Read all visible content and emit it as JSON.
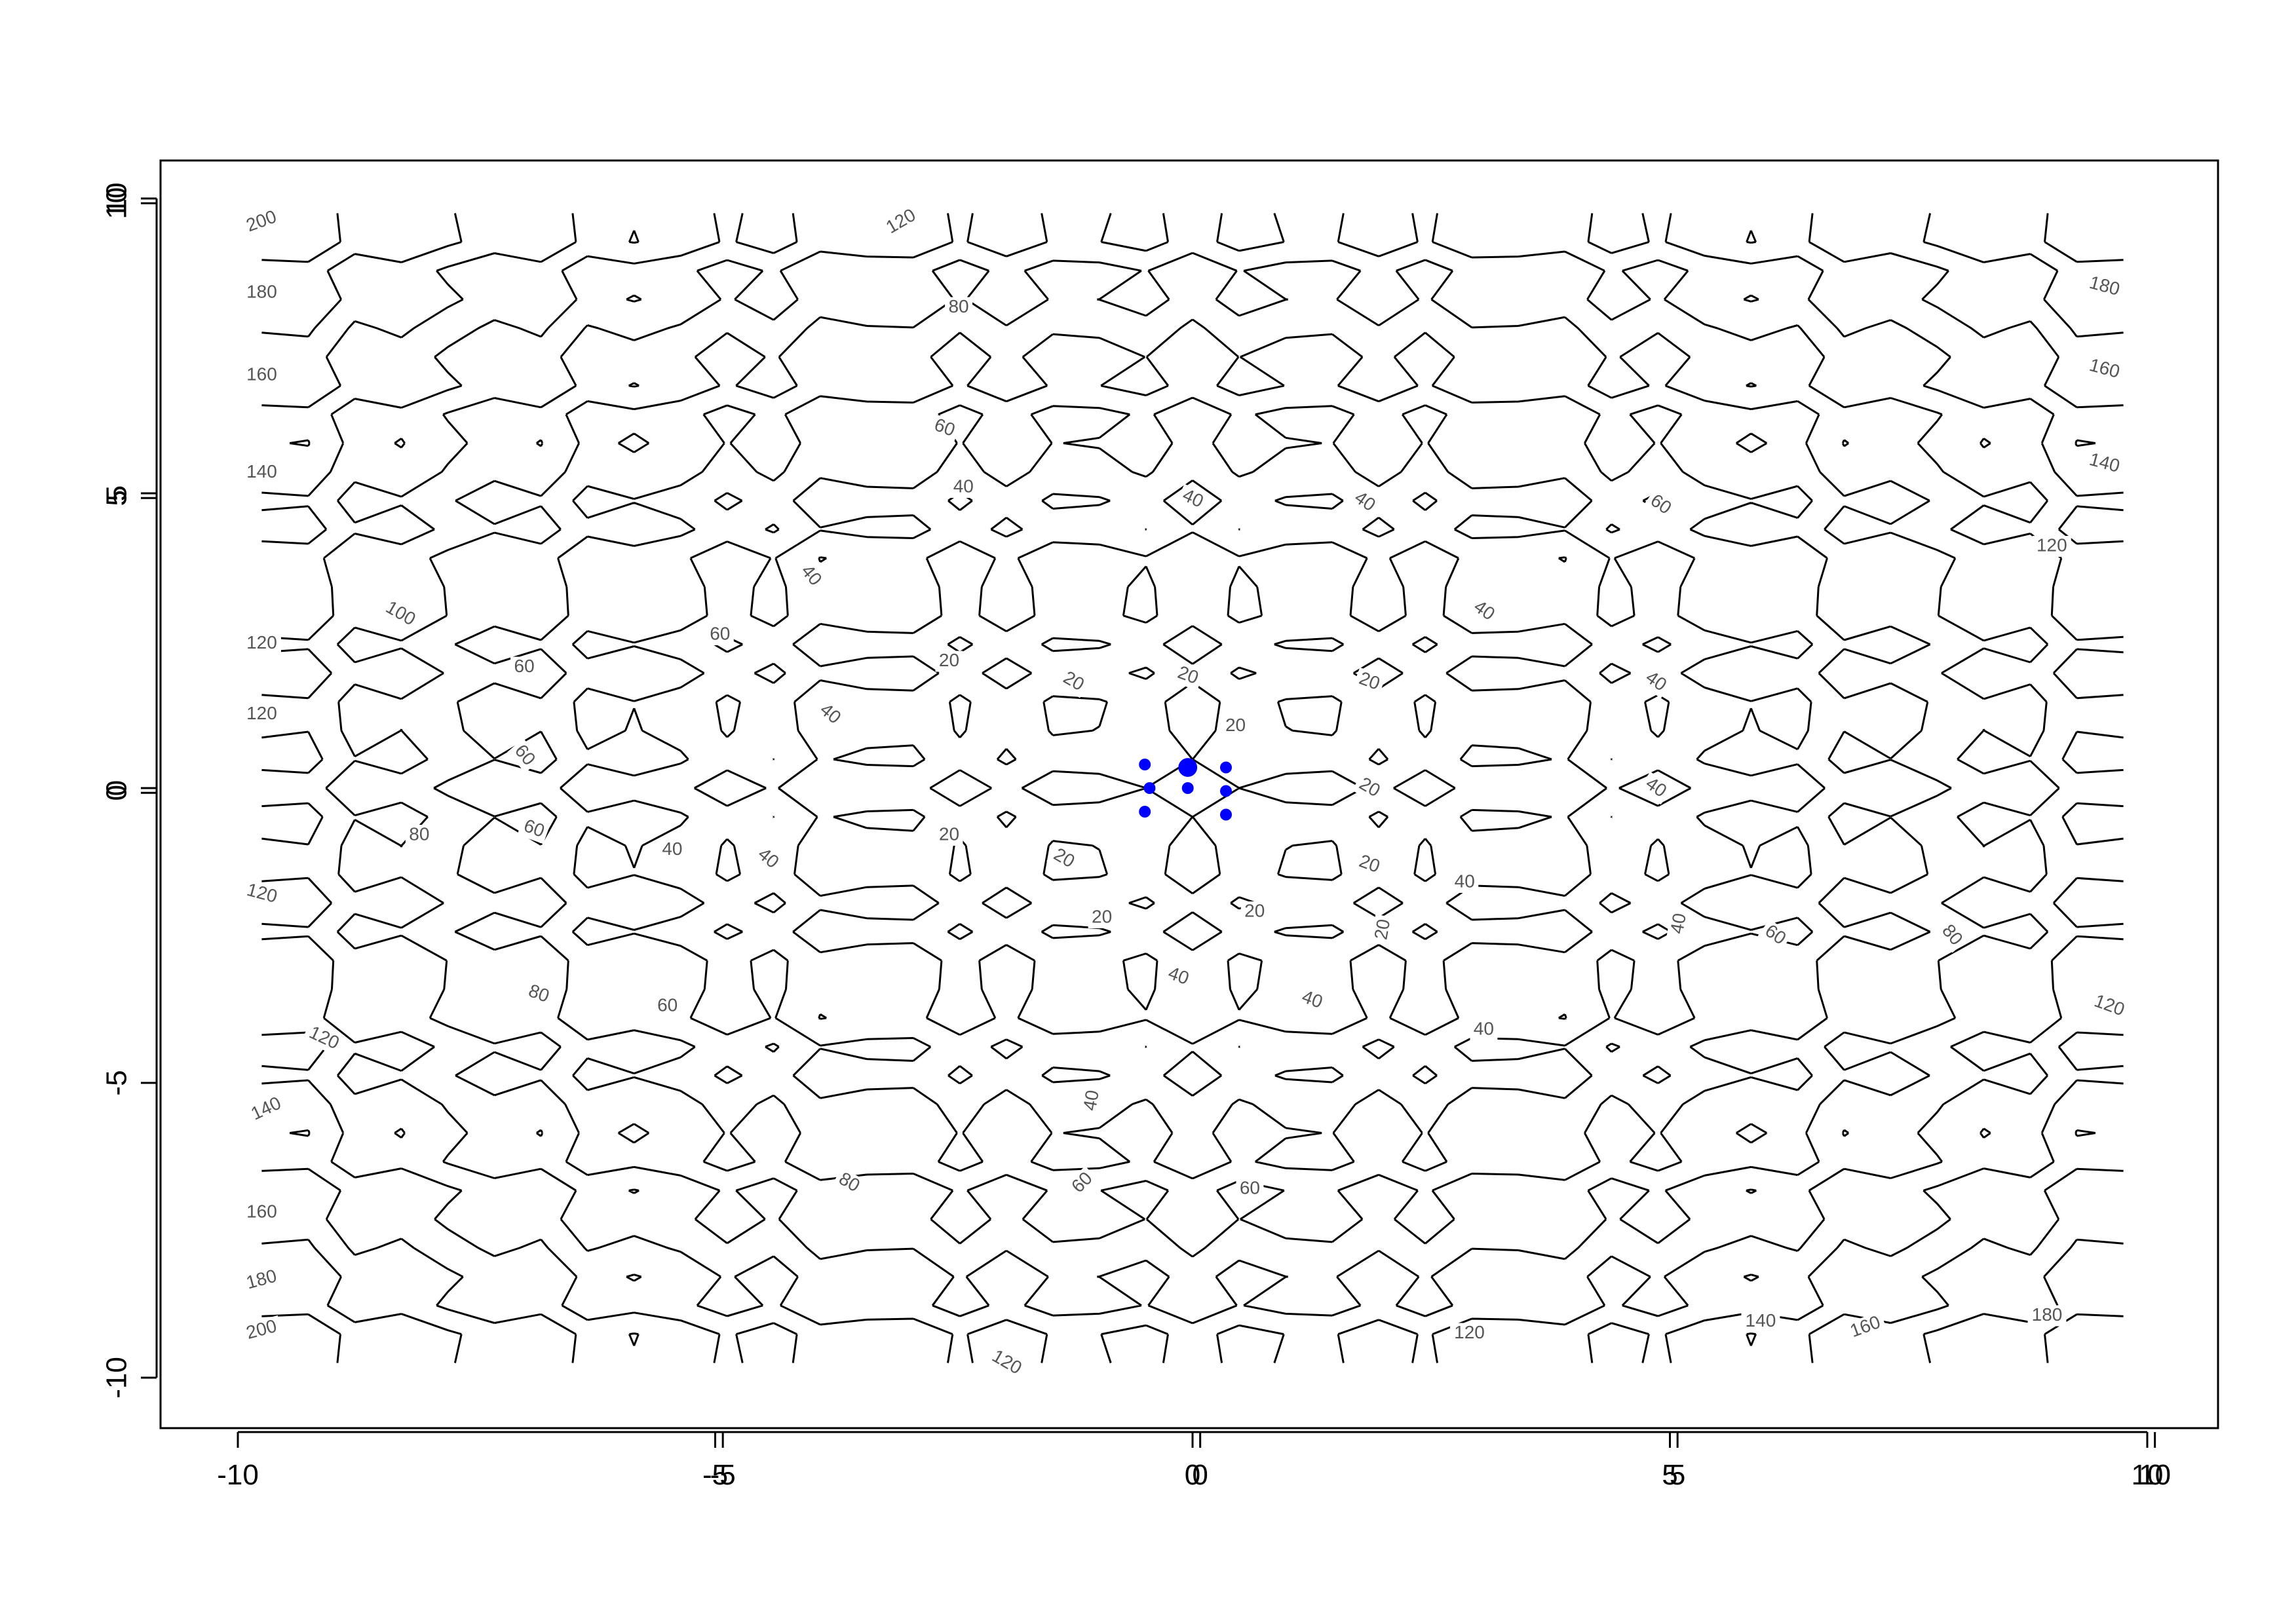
{
  "chart_data": {
    "type": "contour",
    "title": "",
    "xlabel": "",
    "ylabel": "",
    "xlim": [
      -10.8,
      10.8
    ],
    "ylim": [
      -10.8,
      10.6
    ],
    "x_ticks": [
      -10,
      -5,
      0,
      5,
      10
    ],
    "y_ticks": [
      -10,
      -5,
      0,
      5,
      10
    ],
    "x_tick_labels": [
      "-10",
      "-5",
      "0",
      "5",
      "10"
    ],
    "y_tick_labels": [
      "-10",
      "-5",
      "0",
      "5",
      "10"
    ],
    "x_axis_overlay": {
      "ticks": [
        -5,
        0,
        5,
        10
      ],
      "labels": [
        "-5",
        "0",
        "5",
        "10"
      ],
      "offset": 0.08
    },
    "y_axis_overlay": {
      "ticks": [
        0,
        5,
        10
      ],
      "labels": [
        "0",
        "5",
        "10"
      ],
      "offset": 0.08
    },
    "contour_levels": [
      20,
      40,
      60,
      80,
      100,
      120,
      140,
      160,
      180,
      200
    ],
    "grid": false,
    "legend": "none",
    "point_color": "#0000ff",
    "points": [
      {
        "x": -0.5,
        "y": 0.4,
        "size": 1
      },
      {
        "x": -0.45,
        "y": 0.0,
        "size": 1
      },
      {
        "x": -0.5,
        "y": -0.4,
        "size": 1
      },
      {
        "x": -0.05,
        "y": 0.35,
        "size": 1.6
      },
      {
        "x": -0.05,
        "y": 0.0,
        "size": 1
      },
      {
        "x": 0.35,
        "y": 0.35,
        "size": 1
      },
      {
        "x": 0.35,
        "y": -0.05,
        "size": 1
      },
      {
        "x": 0.35,
        "y": -0.45,
        "size": 1
      }
    ],
    "labels": [
      {
        "text": "200",
        "x": -9.75,
        "y": 9.6,
        "angle": -20
      },
      {
        "text": "180",
        "x": -9.75,
        "y": 8.4,
        "angle": 0
      },
      {
        "text": "160",
        "x": -9.75,
        "y": 7.0,
        "angle": 0
      },
      {
        "text": "140",
        "x": -9.75,
        "y": 5.35,
        "angle": 0
      },
      {
        "text": "120",
        "x": -9.75,
        "y": 2.45,
        "angle": 0
      },
      {
        "text": "120",
        "x": -9.75,
        "y": 1.25,
        "angle": 0
      },
      {
        "text": "120",
        "x": -9.75,
        "y": -1.8,
        "angle": 15
      },
      {
        "text": "100",
        "x": -8.3,
        "y": 2.95,
        "angle": 30
      },
      {
        "text": "120",
        "x": -3.05,
        "y": 9.6,
        "angle": -30
      },
      {
        "text": "80",
        "x": -2.45,
        "y": 8.15,
        "angle": 0
      },
      {
        "text": "60",
        "x": -2.6,
        "y": 6.1,
        "angle": 20
      },
      {
        "text": "40",
        "x": -2.4,
        "y": 5.1,
        "angle": 0
      },
      {
        "text": "60",
        "x": -4.95,
        "y": 2.6,
        "angle": 0
      },
      {
        "text": "40",
        "x": -4.0,
        "y": 3.6,
        "angle": 50
      },
      {
        "text": "60",
        "x": -7.0,
        "y": 2.05,
        "angle": 0
      },
      {
        "text": "60",
        "x": -7.0,
        "y": 0.55,
        "angle": 50
      },
      {
        "text": "20",
        "x": -2.55,
        "y": 2.15,
        "angle": 0
      },
      {
        "text": "20",
        "x": -1.25,
        "y": 1.8,
        "angle": 30
      },
      {
        "text": "40",
        "x": -3.8,
        "y": 1.25,
        "angle": 40
      },
      {
        "text": "20",
        "x": -0.05,
        "y": 1.9,
        "angle": 20
      },
      {
        "text": "20",
        "x": 1.85,
        "y": 1.8,
        "angle": 20
      },
      {
        "text": "20",
        "x": 0.45,
        "y": 1.05,
        "angle": 0
      },
      {
        "text": "20",
        "x": 1.85,
        "y": 0.0,
        "angle": 30
      },
      {
        "text": "40",
        "x": 0.0,
        "y": 4.9,
        "angle": 25
      },
      {
        "text": "40",
        "x": 1.8,
        "y": 4.85,
        "angle": 35
      },
      {
        "text": "40",
        "x": 3.05,
        "y": 3.0,
        "angle": 35
      },
      {
        "text": "60",
        "x": 4.9,
        "y": 4.8,
        "angle": 35
      },
      {
        "text": "40",
        "x": 4.85,
        "y": 1.8,
        "angle": 35
      },
      {
        "text": "40",
        "x": 4.85,
        "y": 0.0,
        "angle": 35
      },
      {
        "text": "80",
        "x": -8.1,
        "y": -0.8,
        "angle": 0
      },
      {
        "text": "60",
        "x": -6.9,
        "y": -0.7,
        "angle": 20
      },
      {
        "text": "40",
        "x": -5.45,
        "y": -1.05,
        "angle": 0
      },
      {
        "text": "40",
        "x": -4.45,
        "y": -1.2,
        "angle": 40
      },
      {
        "text": "20",
        "x": -2.55,
        "y": -0.8,
        "angle": 0
      },
      {
        "text": "20",
        "x": -1.35,
        "y": -1.2,
        "angle": 30
      },
      {
        "text": "20",
        "x": 1.85,
        "y": -1.3,
        "angle": 20
      },
      {
        "text": "40",
        "x": 2.85,
        "y": -1.6,
        "angle": 0
      },
      {
        "text": "20",
        "x": -0.95,
        "y": -2.2,
        "angle": 0
      },
      {
        "text": "20",
        "x": 0.65,
        "y": -2.1,
        "angle": 0
      },
      {
        "text": "20",
        "x": 2.0,
        "y": -2.4,
        "angle": -80
      },
      {
        "text": "40",
        "x": 5.1,
        "y": -2.3,
        "angle": -80
      },
      {
        "text": "60",
        "x": 6.1,
        "y": -2.5,
        "angle": 35
      },
      {
        "text": "80",
        "x": 7.95,
        "y": -2.5,
        "angle": 50
      },
      {
        "text": "80",
        "x": -6.85,
        "y": -3.5,
        "angle": 20
      },
      {
        "text": "60",
        "x": -5.5,
        "y": -3.7,
        "angle": 0
      },
      {
        "text": "40",
        "x": -0.15,
        "y": -3.2,
        "angle": 20
      },
      {
        "text": "40",
        "x": 1.25,
        "y": -3.6,
        "angle": 20
      },
      {
        "text": "40",
        "x": 3.05,
        "y": -4.1,
        "angle": 0
      },
      {
        "text": "120",
        "x": -9.1,
        "y": -4.25,
        "angle": 25
      },
      {
        "text": "140",
        "x": -9.7,
        "y": -5.45,
        "angle": -25
      },
      {
        "text": "40",
        "x": -1.05,
        "y": -5.3,
        "angle": -80
      },
      {
        "text": "80",
        "x": -3.6,
        "y": -6.7,
        "angle": 30
      },
      {
        "text": "60",
        "x": -1.15,
        "y": -6.7,
        "angle": -45
      },
      {
        "text": "60",
        "x": 0.6,
        "y": -6.8,
        "angle": 0
      },
      {
        "text": "160",
        "x": -9.75,
        "y": -7.2,
        "angle": 0
      },
      {
        "text": "180",
        "x": -9.75,
        "y": -8.35,
        "angle": -15
      },
      {
        "text": "200",
        "x": -9.75,
        "y": -9.2,
        "angle": -15
      },
      {
        "text": "120",
        "x": -1.95,
        "y": -9.75,
        "angle": 30
      },
      {
        "text": "120",
        "x": 2.9,
        "y": -9.25,
        "angle": 0
      },
      {
        "text": "140",
        "x": 5.95,
        "y": -9.05,
        "angle": 0
      },
      {
        "text": "160",
        "x": 7.05,
        "y": -9.15,
        "angle": -20
      },
      {
        "text": "180",
        "x": 8.95,
        "y": -8.95,
        "angle": 0
      },
      {
        "text": "120",
        "x": 9.6,
        "y": -3.7,
        "angle": 20
      },
      {
        "text": "120",
        "x": 9.0,
        "y": 4.1,
        "angle": 0
      },
      {
        "text": "140",
        "x": 9.55,
        "y": 5.5,
        "angle": 15
      },
      {
        "text": "160",
        "x": 9.55,
        "y": 7.1,
        "angle": 15
      },
      {
        "text": "180",
        "x": 9.55,
        "y": 8.5,
        "angle": 15
      }
    ]
  }
}
